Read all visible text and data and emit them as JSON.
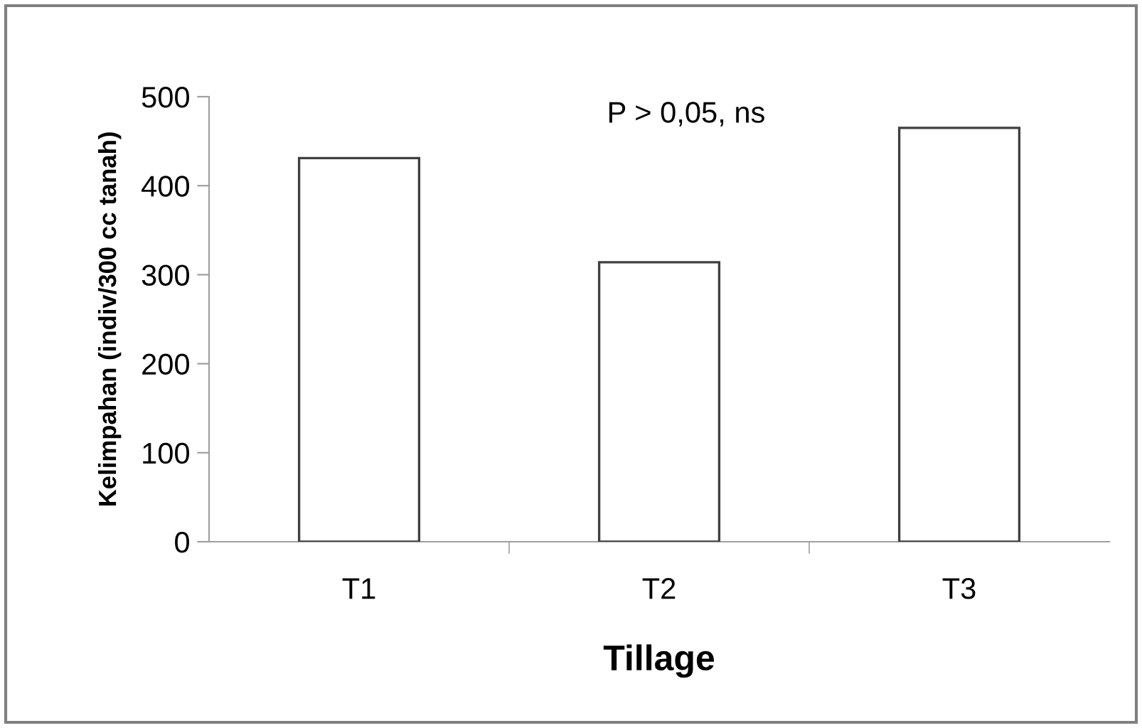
{
  "chart_data": {
    "type": "bar",
    "categories": [
      "T1",
      "T2",
      "T3"
    ],
    "values": [
      431,
      314,
      465
    ],
    "color": "#ffffff",
    "xlabel": "Tillage",
    "ylabel": "Kelimpahan (indiv/300 cc tanah)",
    "ylim": [
      0,
      500
    ],
    "yticks": [
      0,
      100,
      200,
      300,
      400,
      500
    ],
    "annotations": [
      "P > 0,05, ns"
    ],
    "grid": false,
    "legend": false
  }
}
